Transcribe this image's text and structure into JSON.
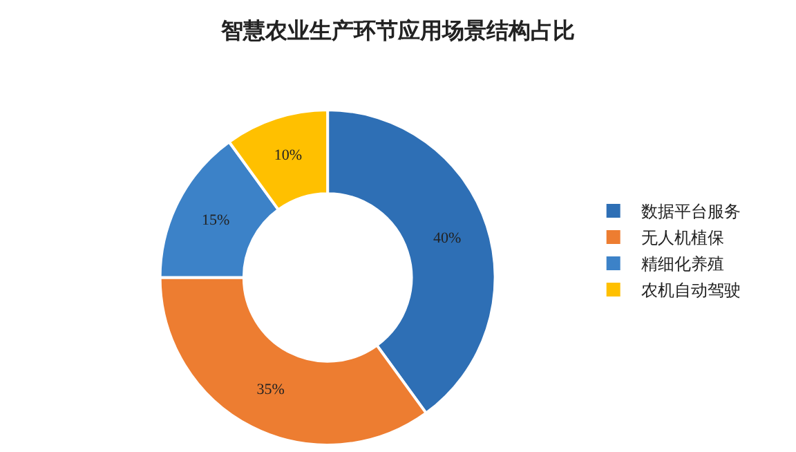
{
  "chart_data": {
    "type": "donut",
    "title": "智慧农业生产环节应用场景结构占比",
    "categories": [
      "数据平台服务",
      "无人机植保",
      "精细化养殖",
      "农机自动驾驶"
    ],
    "values": [
      40,
      35,
      15,
      10
    ],
    "value_labels": [
      "40%",
      "35%",
      "15%",
      "10%"
    ],
    "colors": [
      "#2e6fb5",
      "#ed7d31",
      "#3c82c8",
      "#ffc000"
    ],
    "legend": "right"
  }
}
